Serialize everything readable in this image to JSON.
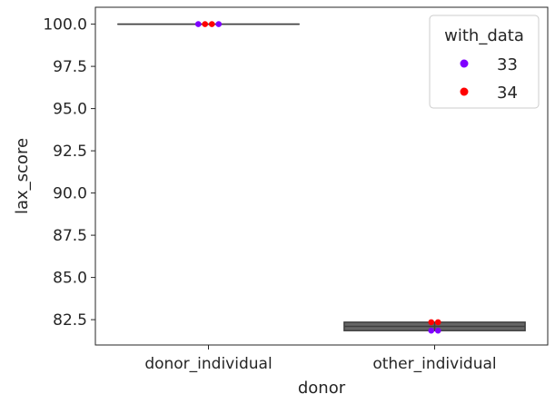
{
  "chart_data": {
    "type": "box_with_swarm",
    "xlabel": "donor",
    "ylabel": "lax_score",
    "categories": [
      "donor_individual",
      "other_individual"
    ],
    "ylim": [
      81.0,
      101.0
    ],
    "yticks": [
      82.5,
      85.0,
      87.5,
      90.0,
      92.5,
      95.0,
      97.5,
      100.0
    ],
    "ytick_labels": [
      "82.5",
      "85.0",
      "87.5",
      "90.0",
      "92.5",
      "95.0",
      "97.5",
      "100.0"
    ],
    "grid": false,
    "legend": {
      "title": "with_data",
      "placement": "top-right",
      "entries": [
        {
          "label": "33",
          "color": "#7f00ff"
        },
        {
          "label": "34",
          "color": "#ff0000"
        }
      ]
    },
    "boxes": [
      {
        "category": "donor_individual",
        "q1": 100.0,
        "median": 100.0,
        "q3": 100.0,
        "whisker_low": 100.0,
        "whisker_high": 100.0
      },
      {
        "category": "other_individual",
        "q1": 81.85,
        "median": 82.1,
        "q3": 82.35,
        "whisker_low": 81.85,
        "whisker_high": 82.35
      }
    ],
    "box_color": "#666666",
    "points": [
      {
        "category": "donor_individual",
        "group": "33",
        "y": 100.0
      },
      {
        "category": "donor_individual",
        "group": "34",
        "y": 100.0
      },
      {
        "category": "donor_individual",
        "group": "34",
        "y": 100.0
      },
      {
        "category": "donor_individual",
        "group": "33",
        "y": 100.0
      },
      {
        "category": "other_individual",
        "group": "34",
        "y": 82.35
      },
      {
        "category": "other_individual",
        "group": "34",
        "y": 82.35
      },
      {
        "category": "other_individual",
        "group": "33",
        "y": 81.85
      },
      {
        "category": "other_individual",
        "group": "33",
        "y": 81.85
      }
    ]
  }
}
